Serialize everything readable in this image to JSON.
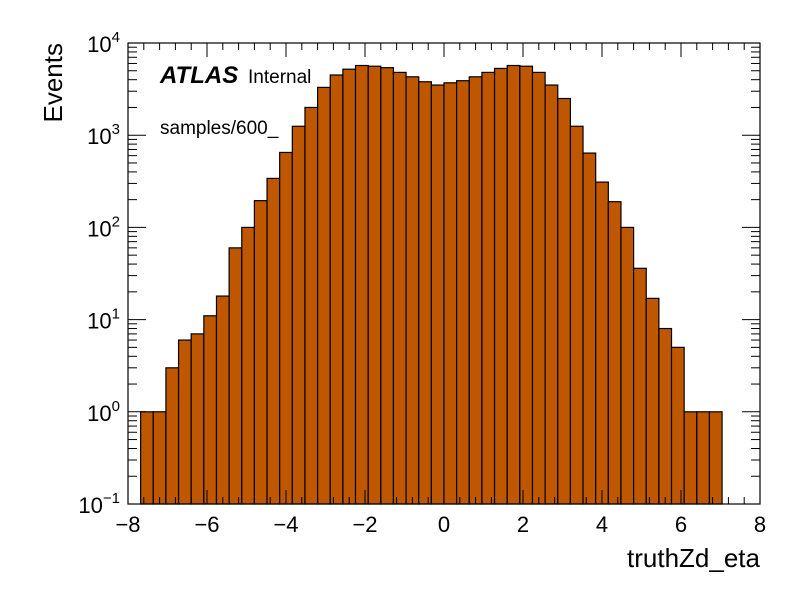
{
  "chart_data": {
    "type": "bar",
    "xlabel": "truthZd_eta",
    "ylabel": "Events",
    "xlim": [
      -8,
      8
    ],
    "ylim_log10": [
      -1,
      4
    ],
    "log_y": true,
    "bin_width": 0.32,
    "bin_start": -8,
    "bar_color": "#BF5700",
    "x_ticks": [
      -8,
      -6,
      -4,
      -2,
      0,
      2,
      4,
      6,
      8
    ],
    "x_tick_labels": [
      "−8",
      "−6",
      "−4",
      "−2",
      "0",
      "2",
      "4",
      "6",
      "8"
    ],
    "y_ticks": [
      {
        "base": "10",
        "exp": "−1",
        "value": -1
      },
      {
        "base": "10",
        "exp": "0",
        "value": 0
      },
      {
        "base": "10",
        "exp": "1",
        "value": 1
      },
      {
        "base": "10",
        "exp": "2",
        "value": 2
      },
      {
        "base": "10",
        "exp": "3",
        "value": 3
      },
      {
        "base": "10",
        "exp": "4",
        "value": 4
      }
    ],
    "values": [
      0,
      1,
      1,
      3,
      6,
      7,
      11,
      18,
      60,
      100,
      195,
      340,
      650,
      1250,
      2000,
      3300,
      4500,
      5200,
      5700,
      5600,
      5400,
      4800,
      4300,
      3800,
      3500,
      3700,
      3900,
      4300,
      4800,
      5300,
      5700,
      5600,
      4800,
      3500,
      2500,
      1250,
      640,
      310,
      190,
      100,
      36,
      17,
      8,
      5,
      1,
      1,
      1,
      0,
      0,
      0
    ],
    "label_atlas": "ATLAS",
    "label_internal": "Internal",
    "label_sample": "samples/600_"
  }
}
